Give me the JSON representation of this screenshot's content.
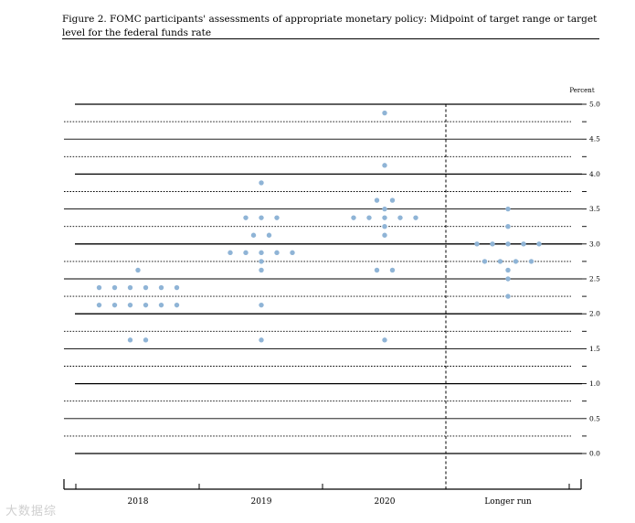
{
  "figure": {
    "title": "Figure 2. FOMC participants' assessments of appropriate monetary policy: Midpoint of target range or target level for the federal funds rate",
    "watermark": "大数据综"
  },
  "chart_data": {
    "type": "scatter",
    "title": "",
    "unit_label": "Percent",
    "ylim": [
      0.0,
      5.0
    ],
    "y_ticks": [
      "0.0",
      "0.5",
      "1.0",
      "1.5",
      "2.0",
      "2.5",
      "3.0",
      "3.5",
      "4.0",
      "4.5",
      "5.0"
    ],
    "categories": [
      "2018",
      "2019",
      "2020",
      "Longer run"
    ],
    "dot_color": "#8fb4d6",
    "series": [
      {
        "category": "2018",
        "dots": [
          {
            "y": 2.625,
            "n": 1
          },
          {
            "y": 2.375,
            "n": 6
          },
          {
            "y": 2.125,
            "n": 6
          },
          {
            "y": 1.625,
            "n": 2
          }
        ]
      },
      {
        "category": "2019",
        "dots": [
          {
            "y": 3.875,
            "n": 1
          },
          {
            "y": 3.375,
            "n": 3
          },
          {
            "y": 3.125,
            "n": 2
          },
          {
            "y": 2.875,
            "n": 5
          },
          {
            "y": 2.75,
            "n": 1
          },
          {
            "y": 2.625,
            "n": 1
          },
          {
            "y": 2.125,
            "n": 1
          },
          {
            "y": 1.625,
            "n": 1
          }
        ]
      },
      {
        "category": "2020",
        "dots": [
          {
            "y": 4.875,
            "n": 1
          },
          {
            "y": 4.125,
            "n": 1
          },
          {
            "y": 3.625,
            "n": 2
          },
          {
            "y": 3.5,
            "n": 1
          },
          {
            "y": 3.375,
            "n": 5
          },
          {
            "y": 3.25,
            "n": 1
          },
          {
            "y": 3.125,
            "n": 1
          },
          {
            "y": 2.625,
            "n": 2
          },
          {
            "y": 1.625,
            "n": 1
          }
        ]
      },
      {
        "category": "Longer run",
        "dots": [
          {
            "y": 3.5,
            "n": 1
          },
          {
            "y": 3.25,
            "n": 1
          },
          {
            "y": 3.0,
            "n": 5
          },
          {
            "y": 2.75,
            "n": 4
          },
          {
            "y": 2.625,
            "n": 1
          },
          {
            "y": 2.5,
            "n": 1
          },
          {
            "y": 2.25,
            "n": 1
          }
        ]
      }
    ]
  }
}
